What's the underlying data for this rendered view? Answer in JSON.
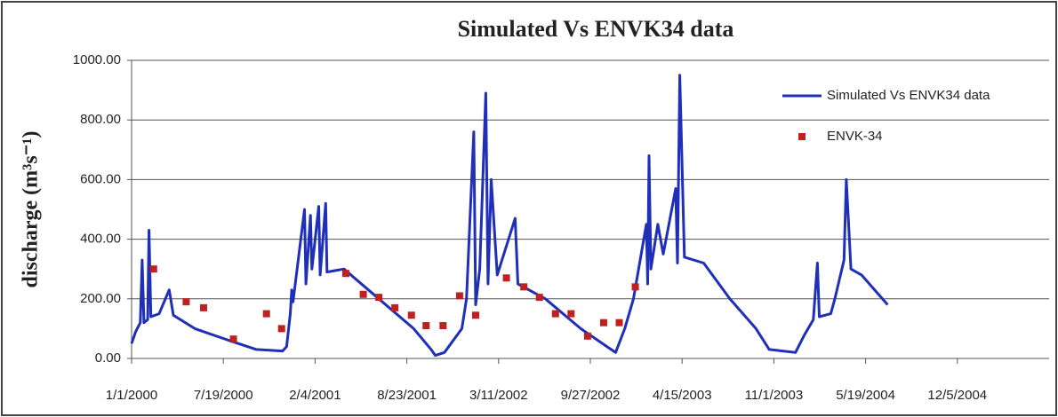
{
  "chart_data": {
    "type": "line",
    "title": "Simulated Vs ENVK34 data",
    "ylabel": "discharge (m³s⁻¹)",
    "xlim": [
      "2000-01-01",
      "2005-06-23"
    ],
    "xticks": [
      {
        "value": "2000-01-01",
        "label": "1/1/2000"
      },
      {
        "value": "2000-07-19",
        "label": "7/19/2000"
      },
      {
        "value": "2001-02-04",
        "label": "2/4/2001"
      },
      {
        "value": "2001-08-23",
        "label": "8/23/2001"
      },
      {
        "value": "2002-03-11",
        "label": "3/11/2002"
      },
      {
        "value": "2002-09-27",
        "label": "9/27/2002"
      },
      {
        "value": "2003-04-15",
        "label": "4/15/2003"
      },
      {
        "value": "2003-11-01",
        "label": "11/1/2003"
      },
      {
        "value": "2004-05-19",
        "label": "5/19/2004"
      },
      {
        "value": "2004-12-05",
        "label": "12/5/2004"
      }
    ],
    "ylim": [
      0,
      1000
    ],
    "yticks": [
      {
        "value": 0,
        "label": "0.00"
      },
      {
        "value": 200,
        "label": "200.00"
      },
      {
        "value": 400,
        "label": "400.00"
      },
      {
        "value": 600,
        "label": "600.00"
      },
      {
        "value": 800,
        "label": "800.00"
      },
      {
        "value": 1000,
        "label": "1000.00"
      }
    ],
    "grid": true,
    "legend": "upper right",
    "series": [
      {
        "name": "Simulated Vs ENVK34 data",
        "color": "#1f2fb8",
        "kind": "line",
        "x": [
          "2000-01-01",
          "2000-01-10",
          "2000-01-20",
          "2000-01-24",
          "2000-01-28",
          "2000-02-05",
          "2000-02-08",
          "2000-02-12",
          "2000-03-01",
          "2000-03-23",
          "2000-04-01",
          "2000-05-18",
          "2000-08-01",
          "2000-09-29",
          "2000-11-25",
          "2000-12-04",
          "2000-12-12",
          "2000-12-15",
          "2000-12-18",
          "2001-01-12",
          "2001-01-15",
          "2001-01-25",
          "2001-01-28",
          "2001-02-12",
          "2001-02-15",
          "2001-02-27",
          "2001-03-02",
          "2001-04-08",
          "2001-06-23",
          "2001-09-07",
          "2001-10-15",
          "2001-10-24",
          "2001-11-13",
          "2001-12-02",
          "2001-12-21",
          "2001-12-31",
          "2002-01-16",
          "2002-01-20",
          "2002-01-29",
          "2002-02-11",
          "2002-02-16",
          "2002-02-23",
          "2002-03-08",
          "2002-04-16",
          "2002-04-22",
          "2002-06-21",
          "2002-09-06",
          "2002-11-02",
          "2002-11-21",
          "2002-12-11",
          "2002-12-30",
          "2003-01-27",
          "2003-01-30",
          "2003-02-02",
          "2003-02-06",
          "2003-02-21",
          "2003-03-05",
          "2003-04-01",
          "2003-04-05",
          "2003-04-10",
          "2003-04-20",
          "2003-06-01",
          "2003-07-28",
          "2003-09-23",
          "2003-10-22",
          "2003-12-18",
          "2004-01-07",
          "2004-01-26",
          "2004-02-04",
          "2004-02-08",
          "2004-03-04",
          "2004-03-13",
          "2004-04-02",
          "2004-04-07",
          "2004-04-17",
          "2004-05-10",
          "2004-07-06"
        ],
        "values": [
          50,
          90,
          120,
          330,
          120,
          130,
          430,
          140,
          150,
          230,
          145,
          100,
          60,
          30,
          25,
          40,
          150,
          230,
          190,
          500,
          250,
          480,
          300,
          510,
          280,
          520,
          290,
          300,
          200,
          100,
          30,
          10,
          20,
          60,
          100,
          200,
          760,
          180,
          300,
          890,
          250,
          600,
          280,
          470,
          250,
          200,
          100,
          40,
          20,
          100,
          200,
          450,
          250,
          680,
          300,
          450,
          350,
          570,
          320,
          950,
          340,
          320,
          200,
          100,
          30,
          20,
          80,
          130,
          320,
          140,
          150,
          200,
          330,
          600,
          300,
          280,
          180
        ]
      },
      {
        "name": "ENVK-34",
        "color": "#c0201f",
        "kind": "scatter",
        "x": [
          "2000-02-18",
          "2000-04-29",
          "2000-06-06",
          "2000-08-10",
          "2000-10-21",
          "2000-11-23",
          "2001-04-12",
          "2001-05-20",
          "2001-06-23",
          "2001-07-28",
          "2001-09-02",
          "2001-10-04",
          "2001-11-10",
          "2001-12-16",
          "2002-01-20",
          "2002-03-28",
          "2002-05-05",
          "2002-06-08",
          "2002-07-13",
          "2002-08-16",
          "2002-09-21",
          "2002-10-26",
          "2002-11-29",
          "2003-01-03"
        ],
        "values": [
          300,
          190,
          170,
          65,
          150,
          100,
          285,
          215,
          205,
          170,
          145,
          110,
          110,
          210,
          145,
          270,
          240,
          205,
          150,
          150,
          75,
          120,
          120,
          240
        ]
      }
    ]
  }
}
